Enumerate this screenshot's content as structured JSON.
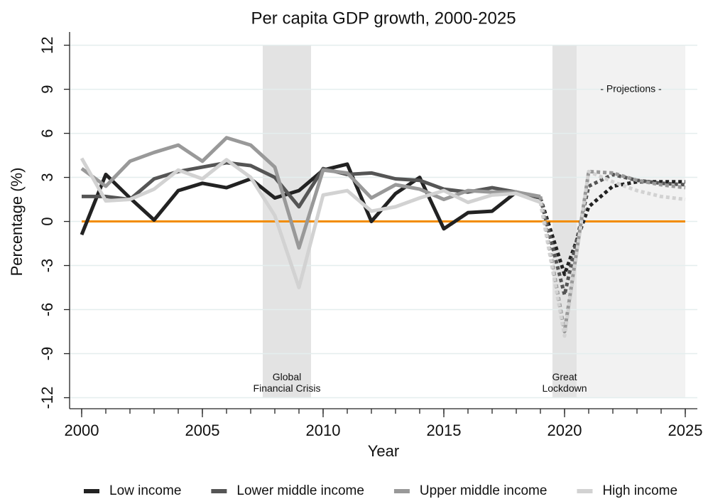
{
  "chart_data": {
    "type": "line",
    "title": "Per capita GDP growth, 2000-2025",
    "x_label": "Year",
    "y_label": "Percentage (%)",
    "x": [
      2000,
      2001,
      2002,
      2003,
      2004,
      2005,
      2006,
      2007,
      2008,
      2009,
      2010,
      2011,
      2012,
      2013,
      2014,
      2015,
      2016,
      2017,
      2018,
      2019,
      2020,
      2021,
      2022,
      2023,
      2024,
      2025
    ],
    "xlim": [
      1999.5,
      2025.5
    ],
    "xticks": [
      2000,
      2005,
      2010,
      2015,
      2020,
      2025
    ],
    "ylim": [
      -12.75,
      12.9
    ],
    "yticks": [
      -12,
      -9,
      -6,
      -3,
      0,
      3,
      6,
      9,
      12
    ],
    "grid": true,
    "dotted_from": 2019,
    "reference_line": {
      "value": 0,
      "color": "#f28c00"
    },
    "shaded_regions": [
      {
        "start": 2007.5,
        "end": 2009.5,
        "color": "#e3e3e3",
        "label": [
          "Global",
          "Financial Crisis"
        ],
        "label_position": "bottom"
      },
      {
        "start": 2019.5,
        "end": 2020.5,
        "color": "#e3e3e3",
        "label": [
          "Great",
          "Lockdown"
        ],
        "label_position": "bottom"
      },
      {
        "start": 2020.5,
        "end": 2025,
        "color": "#f2f2f2",
        "label": [
          "- Projections -"
        ],
        "label_position": "top"
      }
    ],
    "legend": "bottom",
    "series": [
      {
        "name": "Low income",
        "color": "#222222",
        "values": [
          -0.9,
          3.2,
          1.6,
          0.1,
          2.1,
          2.6,
          2.3,
          2.9,
          1.6,
          2.1,
          3.5,
          3.9,
          0.0,
          1.9,
          3.0,
          -0.5,
          0.6,
          0.7,
          2.0,
          1.6,
          -3.6,
          1.0,
          2.4,
          2.7,
          2.7,
          2.7
        ]
      },
      {
        "name": "Lower middle income",
        "color": "#555555",
        "values": [
          1.7,
          1.7,
          1.5,
          2.9,
          3.4,
          3.7,
          4.0,
          3.8,
          3.0,
          1.0,
          3.6,
          3.2,
          3.3,
          2.9,
          2.8,
          2.2,
          2.0,
          2.3,
          2.0,
          1.6,
          -5.0,
          2.4,
          3.2,
          2.8,
          2.6,
          2.5
        ]
      },
      {
        "name": "Upper middle income",
        "color": "#999999",
        "values": [
          3.6,
          2.4,
          4.1,
          4.7,
          5.2,
          4.1,
          5.7,
          5.2,
          3.7,
          -1.8,
          3.5,
          3.3,
          1.6,
          2.5,
          2.2,
          1.5,
          2.1,
          2.0,
          2.0,
          1.7,
          -7.5,
          3.4,
          3.3,
          2.8,
          2.5,
          2.3
        ]
      },
      {
        "name": "High income",
        "color": "#d2d2d2",
        "values": [
          4.3,
          1.4,
          1.5,
          2.2,
          3.5,
          2.9,
          4.2,
          3.0,
          0.4,
          -4.5,
          1.8,
          2.1,
          0.7,
          1.0,
          1.6,
          2.1,
          1.3,
          1.8,
          1.9,
          1.3,
          -7.8,
          3.4,
          2.7,
          2.1,
          1.7,
          1.5
        ]
      }
    ]
  }
}
